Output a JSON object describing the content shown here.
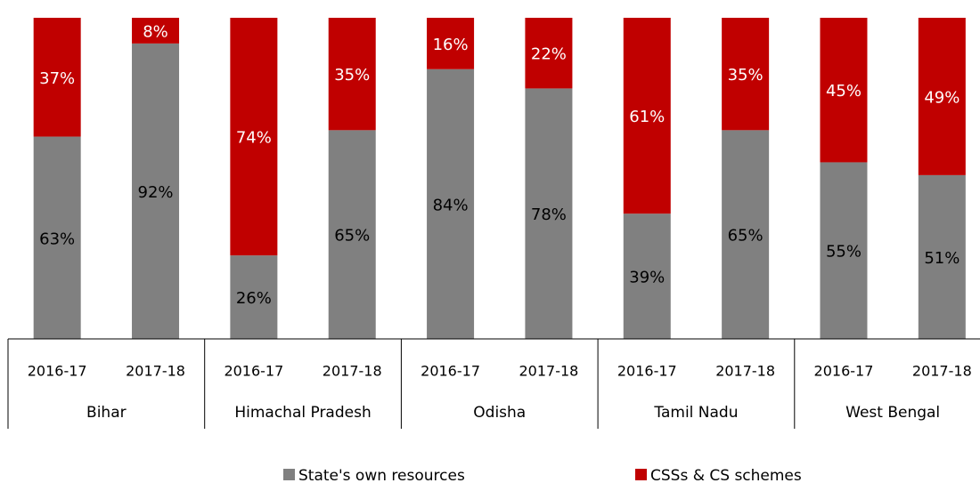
{
  "chart_data": {
    "type": "stacked_bar",
    "categories": [
      "2016-17",
      "2017-18",
      "2016-17",
      "2017-18",
      "2016-17",
      "2017-18",
      "2016-17",
      "2017-18",
      "2016-17",
      "2017-18"
    ],
    "groups": [
      "Bihar",
      "Himachal Pradesh",
      "Odisha",
      "Tamil Nadu",
      "West Bengal"
    ],
    "ylim": [
      0,
      100
    ],
    "legend": "bottom",
    "series": [
      {
        "name": "State's own resources",
        "color": "#808080",
        "values": [
          63,
          92,
          26,
          65,
          84,
          78,
          39,
          65,
          55,
          51
        ],
        "value_labels": [
          "63%",
          "92%",
          "26%",
          "65%",
          "84%",
          "78%",
          "39%",
          "65%",
          "55%",
          "51%"
        ]
      },
      {
        "name": "CSSs & CS schemes",
        "color": "#c00000",
        "values": [
          37,
          8,
          74,
          35,
          16,
          22,
          61,
          35,
          45,
          49
        ],
        "value_labels": [
          "37%",
          "8%",
          "74%",
          "35%",
          "16%",
          "22%",
          "61%",
          "35%",
          "45%",
          "49%"
        ]
      }
    ]
  }
}
